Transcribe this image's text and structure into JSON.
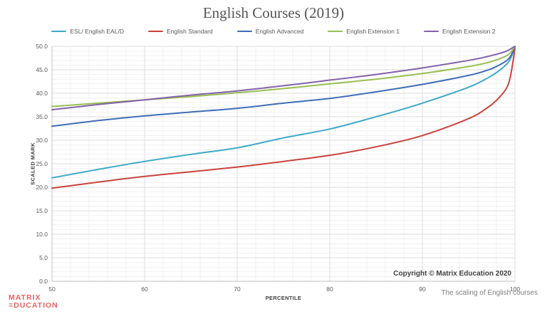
{
  "chart_data": {
    "type": "line",
    "title": "English Courses (2019)",
    "xlabel": "PERCENTILE",
    "ylabel": "SCALED MARK",
    "xlim": [
      50,
      100
    ],
    "ylim": [
      0,
      50
    ],
    "x_major_ticks": [
      50,
      60,
      70,
      80,
      90,
      100
    ],
    "y_major_ticks": [
      0,
      5,
      10,
      15,
      20,
      25,
      30,
      35,
      40,
      45,
      50
    ],
    "x_minor_step": 2,
    "y_minor_step": 1,
    "grid": "on",
    "legend_position": "top",
    "x": [
      50,
      55,
      60,
      65,
      70,
      75,
      80,
      85,
      90,
      95,
      97,
      98,
      99,
      99.5,
      100
    ],
    "series": [
      {
        "name": "ESL/ English EAL/D",
        "color": "#3fa9c8",
        "values": [
          22.0,
          23.8,
          25.5,
          27.0,
          28.4,
          30.5,
          32.4,
          35.0,
          37.9,
          41.3,
          43.2,
          44.4,
          46.0,
          47.3,
          49.8
        ]
      },
      {
        "name": "English Standard",
        "color": "#c9443d",
        "values": [
          19.8,
          21.1,
          22.3,
          23.3,
          24.3,
          25.5,
          26.8,
          28.6,
          31.0,
          34.6,
          36.9,
          38.5,
          40.8,
          43.5,
          49.5
        ]
      },
      {
        "name": "English Advanced",
        "color": "#3f6eb5",
        "values": [
          33.0,
          34.2,
          35.2,
          36.0,
          36.8,
          37.9,
          38.9,
          40.3,
          41.9,
          43.8,
          44.9,
          45.7,
          46.8,
          47.8,
          49.8
        ]
      },
      {
        "name": "English Extension 1",
        "color": "#9abe52",
        "values": [
          37.2,
          37.9,
          38.6,
          39.3,
          40.1,
          41.0,
          42.0,
          43.0,
          44.2,
          45.7,
          46.5,
          47.1,
          47.9,
          48.6,
          50.0
        ]
      },
      {
        "name": "English Extension 2",
        "color": "#8263ab",
        "values": [
          36.5,
          37.6,
          38.6,
          39.6,
          40.5,
          41.6,
          42.8,
          44.0,
          45.4,
          47.0,
          47.8,
          48.3,
          48.9,
          49.4,
          50.0
        ]
      }
    ],
    "annotation": "Copyright © Matrix Education 2020",
    "colors": {
      "major_grid": "#dedede",
      "minor_grid": "#f1f1f1",
      "axis_line": "#bfbfbf",
      "title_text": "#555555",
      "tick_text": "#595959",
      "logo_red": "#ee5f5f"
    }
  },
  "footer": {
    "caption": "The scaling of English courses",
    "logo_line1": "MATRIX",
    "logo_line2": "≡DUCATION"
  }
}
